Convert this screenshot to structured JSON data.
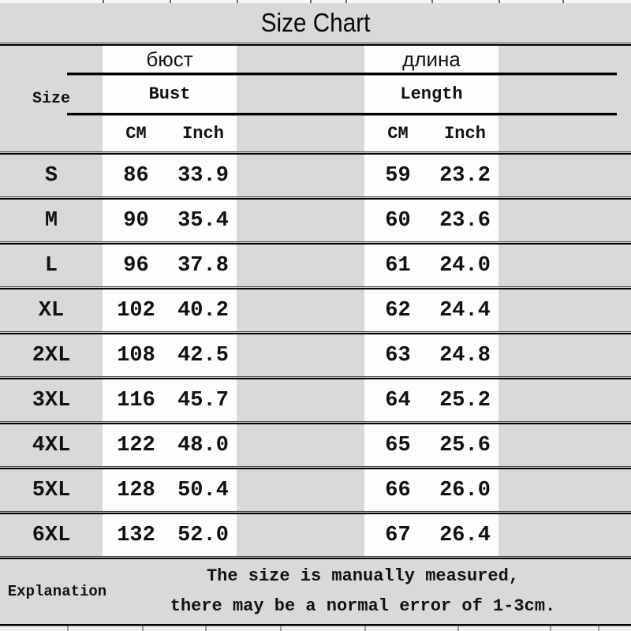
{
  "title": "Size Chart",
  "header": {
    "size": "Size",
    "bust": {
      "ru": "бюст",
      "en": "Bust",
      "cm": "CM",
      "inch": "Inch"
    },
    "length": {
      "ru": "длина",
      "en": "Length",
      "cm": "CM",
      "inch": "Inch"
    }
  },
  "footer": {
    "label": "Explanation",
    "line1": "The size is manually measured,",
    "line2": "there may be a normal error of 1-3cm."
  },
  "colors": {
    "background": "#d9d9d9",
    "stripe": "#fdfdfd",
    "line": "#000000",
    "text": "#111111"
  },
  "chart_data": {
    "type": "table",
    "title": "Size Chart",
    "columns": [
      "Size",
      "Bust CM",
      "Bust Inch",
      "Length CM",
      "Length Inch"
    ],
    "rows": [
      [
        "S",
        "86",
        "33.9",
        "59",
        "23.2"
      ],
      [
        "M",
        "90",
        "35.4",
        "60",
        "23.6"
      ],
      [
        "L",
        "96",
        "37.8",
        "61",
        "24.0"
      ],
      [
        "XL",
        "102",
        "40.2",
        "62",
        "24.4"
      ],
      [
        "2XL",
        "108",
        "42.5",
        "63",
        "24.8"
      ],
      [
        "3XL",
        "116",
        "45.7",
        "64",
        "25.2"
      ],
      [
        "4XL",
        "122",
        "48.0",
        "65",
        "25.6"
      ],
      [
        "5XL",
        "128",
        "50.4",
        "66",
        "26.0"
      ],
      [
        "6XL",
        "132",
        "52.0",
        "67",
        "26.4"
      ]
    ],
    "note": "The size is manually measured, there may be a normal error of 1-3cm."
  }
}
